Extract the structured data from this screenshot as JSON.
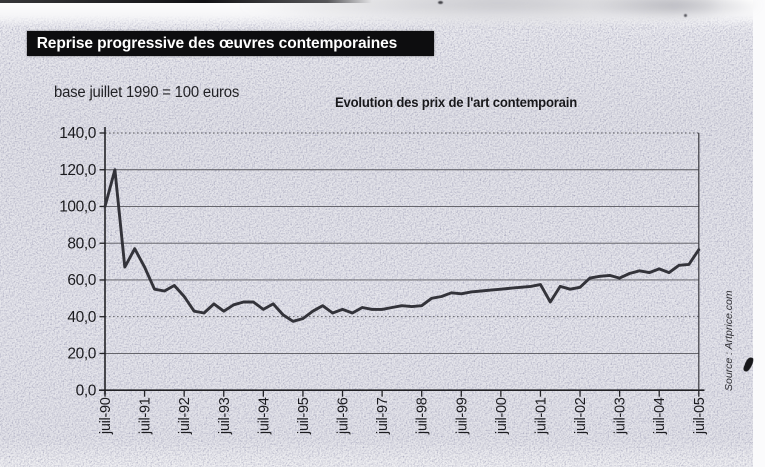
{
  "page": {
    "background": "#e4e4ea",
    "paper_white": "#fbfbfc",
    "ink_color": "#1b1b1f"
  },
  "banner": {
    "title": "Reprise progressive des œuvres contemporaines",
    "bg": "#0d0d0f",
    "text_color": "#ffffff"
  },
  "annotations": {
    "base_note": "base juillet 1990 = 100 euros",
    "source": "Source : Artprice.com"
  },
  "chart_data": {
    "type": "line",
    "title": "Evolution des prix de l'art contemporain",
    "note": "base juillet 1990 = 100 euros",
    "source": "Source : Artprice.com",
    "xlabel": "",
    "ylabel": "",
    "ylim": [
      0,
      140
    ],
    "y_ticks": [
      0,
      20,
      40,
      60,
      80,
      100,
      120,
      140
    ],
    "y_tick_labels": [
      "0,0",
      "20,0",
      "40,0",
      "60,0",
      "80,0",
      "100,0",
      "120,0",
      "140,0"
    ],
    "x_tick_labels": [
      "juil-90",
      "juil-91",
      "juil-92",
      "juil-93",
      "juil-94",
      "juil-95",
      "juil-96",
      "juil-97",
      "juil-98",
      "juil-99",
      "juil-00",
      "juil-01",
      "juil-02",
      "juil-03",
      "juil-04",
      "juil-05"
    ],
    "points_per_year": 4,
    "grid": "on",
    "legend": "none",
    "solid_grid_values": [
      20,
      60,
      80,
      100,
      120
    ],
    "dotted_grid_values": [
      40,
      140
    ],
    "line_color": "#33333a",
    "values": [
      100,
      120,
      67,
      77,
      67,
      55,
      54,
      57,
      51,
      43,
      42,
      47,
      43,
      46.5,
      48,
      48,
      44,
      47,
      41,
      37.5,
      39,
      43,
      46,
      42,
      44,
      42,
      45,
      44,
      44,
      45,
      46,
      45.5,
      46,
      50,
      51,
      53,
      52.5,
      53.5,
      54,
      54.5,
      55,
      55.5,
      56,
      56.5,
      57.5,
      48,
      56.5,
      55,
      56,
      61,
      62,
      62.5,
      61,
      63.5,
      65,
      64,
      66,
      64,
      68,
      68.5,
      76.5
    ]
  }
}
